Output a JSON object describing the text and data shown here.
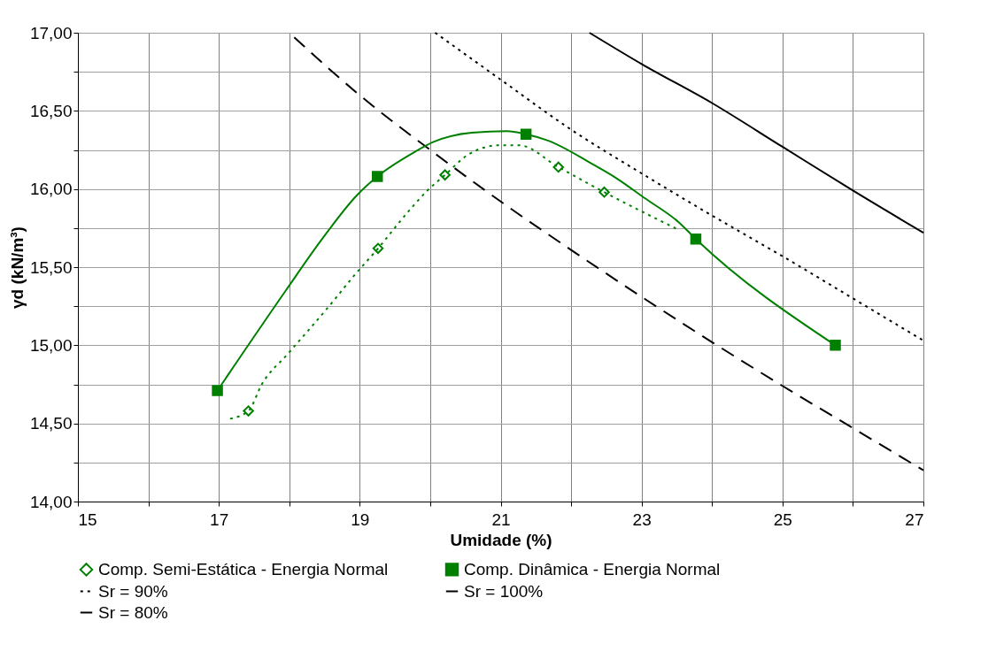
{
  "chart_data": {
    "type": "scatter",
    "xlabel": "Umidade (%)",
    "ylabel": "γd (kN/m³)",
    "xlim": [
      15,
      27
    ],
    "ylim": [
      14,
      17
    ],
    "xticks": [
      15,
      {
        "value": 16,
        "label": null
      },
      17,
      {
        "value": 18,
        "label": null
      },
      19,
      {
        "value": 20,
        "label": null
      },
      21,
      {
        "value": 22,
        "label": null
      },
      23,
      {
        "value": 24,
        "label": null
      },
      25,
      {
        "value": 26,
        "label": null
      },
      27
    ],
    "yticks": [
      {
        "value": 14,
        "label": "14,00"
      },
      {
        "value": 14.25,
        "label": null
      },
      {
        "value": 14.5,
        "label": "14,50"
      },
      {
        "value": 14.75,
        "label": null
      },
      {
        "value": 15,
        "label": "15,00"
      },
      {
        "value": 15.25,
        "label": null
      },
      {
        "value": 15.5,
        "label": "15,50"
      },
      {
        "value": 15.75,
        "label": null
      },
      {
        "value": 16,
        "label": "16,00"
      },
      {
        "value": 16.25,
        "label": null
      },
      {
        "value": 16.5,
        "label": "16,50"
      },
      {
        "value": 16.75,
        "label": null
      },
      {
        "value": 17,
        "label": "17,00"
      }
    ],
    "grid": true,
    "legend": "bottom",
    "series": [
      {
        "name": "Comp. Semi-Estática - Energia Normal",
        "marker": "diamond",
        "color": "#008000",
        "x": [
          17.42,
          19.26,
          20.21,
          21.82,
          22.47
        ],
        "values": [
          14.58,
          15.62,
          16.09,
          16.14,
          15.98
        ]
      },
      {
        "name": "Comp. Dinâmica - Energia Normal",
        "marker": "square",
        "color": "#008000",
        "x": [
          16.98,
          19.25,
          21.36,
          23.77,
          25.75
        ],
        "values": [
          14.71,
          16.08,
          16.35,
          15.68,
          15.0
        ]
      },
      {
        "name": "Sr = 90%",
        "type": "line",
        "line_style": "dotted",
        "color": "#000000",
        "x": [
          20.07,
          21,
          22,
          23,
          24,
          25,
          26,
          27
        ],
        "values": [
          17.0,
          16.7,
          16.38,
          16.1,
          15.83,
          15.57,
          15.3,
          15.03
        ]
      },
      {
        "name": "Sr = 100%",
        "type": "line",
        "line_style": "solid",
        "color": "#000000",
        "x": [
          22.26,
          23,
          24,
          25,
          26,
          27
        ],
        "values": [
          17.0,
          16.8,
          16.55,
          16.27,
          15.99,
          15.72
        ]
      },
      {
        "name": "Sr = 80%",
        "type": "line",
        "line_style": "dashed",
        "color": "#000000",
        "x": [
          18.07,
          19,
          20,
          21,
          22,
          23,
          24,
          25,
          26,
          27
        ],
        "values": [
          16.97,
          16.6,
          16.25,
          15.92,
          15.61,
          15.31,
          15.02,
          14.74,
          14.47,
          14.2
        ]
      },
      {
        "type": "line",
        "line_style": "solid",
        "color": "#008000",
        "x": [
          16.98,
          17.95,
          18.45,
          18.96,
          19.25,
          19.79,
          20.04,
          20.59,
          21.09,
          21.36,
          21.67,
          22.3,
          22.64,
          23.05,
          23.52,
          23.77,
          25.75
        ],
        "values": [
          14.71,
          15.35,
          15.67,
          15.96,
          16.08,
          16.24,
          16.3,
          16.36,
          16.37,
          16.35,
          16.31,
          16.16,
          16.07,
          15.94,
          15.79,
          15.68,
          15.0
        ]
      },
      {
        "type": "line",
        "line_style": "dotted",
        "color": "#008000",
        "x": [
          17.16,
          17.42,
          17.61,
          17.99,
          18.62,
          18.89,
          19.26,
          19.66,
          19.96,
          20.21,
          20.54,
          20.98,
          21.26,
          21.82,
          22.47,
          23.52
        ],
        "values": [
          14.53,
          14.58,
          14.75,
          14.95,
          15.28,
          15.43,
          15.62,
          15.84,
          15.99,
          16.09,
          16.22,
          16.28,
          16.28,
          16.14,
          15.98,
          15.74
        ]
      }
    ]
  }
}
